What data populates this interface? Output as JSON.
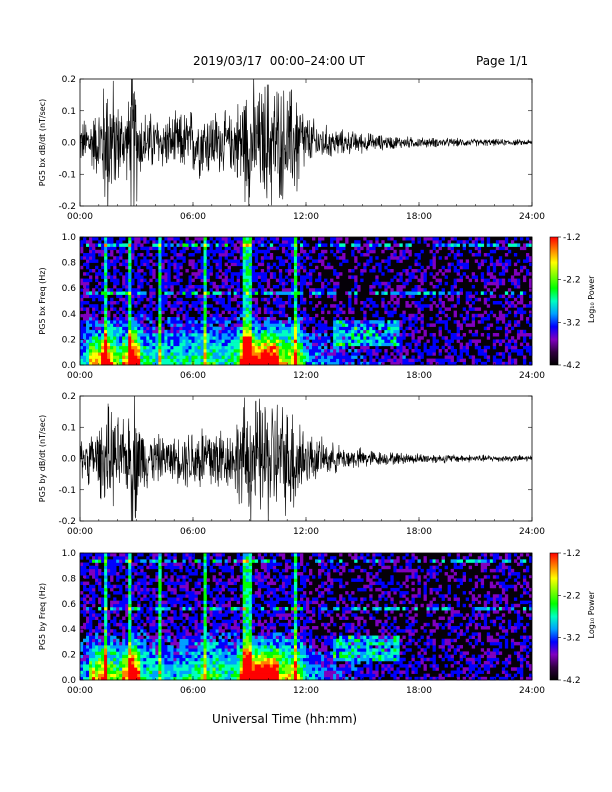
{
  "header": {
    "title": "2019/03/17  00:00–24:00 UT",
    "page": "Page 1/1"
  },
  "xlabel": "Universal Time (hh:mm)",
  "colorbar": {
    "label": "Log₁₀ Power",
    "ticks": [
      "-1.2",
      "-2.2",
      "-3.2",
      "-4.2"
    ],
    "colors": [
      "#ff0000",
      "#ff8000",
      "#ffff00",
      "#80ff00",
      "#00ff00",
      "#00ffc0",
      "#00a0ff",
      "#0000ff",
      "#8000c0",
      "#300040",
      "#000000"
    ]
  },
  "chart_data": [
    {
      "type": "line",
      "ylabel": "PG5 bx dB/dt (nT/sec)",
      "xlim": [
        0,
        24
      ],
      "ylim": [
        -0.2,
        0.2
      ],
      "xticks": [
        "00:00",
        "06:00",
        "12:00",
        "18:00",
        "24:00"
      ],
      "yticks": [
        "0.2",
        "0.1",
        "0.0",
        "-0.1",
        "-0.2"
      ],
      "envelope": {
        "x_hours": [
          0,
          1,
          1.5,
          2,
          2.5,
          2.8,
          3.2,
          4,
          5,
          6,
          7,
          8,
          9,
          9.5,
          10,
          11,
          11.5,
          12,
          13,
          14,
          15,
          16,
          18,
          20,
          22,
          24
        ],
        "amplitude": [
          0.06,
          0.1,
          0.25,
          0.12,
          0.1,
          0.25,
          0.1,
          0.08,
          0.08,
          0.1,
          0.1,
          0.08,
          0.2,
          0.15,
          0.2,
          0.15,
          0.18,
          0.08,
          0.05,
          0.035,
          0.03,
          0.022,
          0.015,
          0.012,
          0.01,
          0.008
        ]
      }
    },
    {
      "type": "heatmap",
      "ylabel": "PG5 bx Freq (Hz)",
      "xlim": [
        0,
        24
      ],
      "ylim": [
        0.0,
        1.0
      ],
      "xticks": [
        "00:00",
        "06:00",
        "12:00",
        "18:00",
        "24:00"
      ],
      "yticks": [
        "1.0",
        "0.8",
        "0.6",
        "0.4",
        "0.2",
        "0.0"
      ],
      "clim": [
        -4.2,
        -1.2
      ],
      "features": {
        "burst_hours": [
          1.3,
          2.7,
          4.3,
          6.7,
          8.8,
          9.1,
          11.5
        ],
        "lowfreq_hours": [
          1,
          2.7,
          9,
          10
        ],
        "noise_hz": [
          0.56,
          0.93
        ]
      }
    },
    {
      "type": "line",
      "ylabel": "PG5 by dB/dt (nT/sec)",
      "xlim": [
        0,
        24
      ],
      "ylim": [
        -0.2,
        0.2
      ],
      "xticks": [
        "00:00",
        "06:00",
        "12:00",
        "18:00",
        "24:00"
      ],
      "yticks": [
        "0.2",
        "0.1",
        "0.0",
        "-0.1",
        "-0.2"
      ],
      "envelope": {
        "x_hours": [
          0,
          1,
          1.5,
          2,
          2.5,
          2.8,
          3.2,
          4,
          5,
          6,
          7,
          8,
          9,
          9.5,
          10,
          11,
          11.5,
          12,
          13,
          14,
          15,
          16,
          18,
          20,
          22,
          24
        ],
        "amplitude": [
          0.05,
          0.1,
          0.15,
          0.12,
          0.1,
          0.25,
          0.1,
          0.07,
          0.06,
          0.1,
          0.12,
          0.08,
          0.2,
          0.17,
          0.2,
          0.15,
          0.18,
          0.08,
          0.05,
          0.035,
          0.03,
          0.02,
          0.015,
          0.012,
          0.01,
          0.01
        ]
      }
    },
    {
      "type": "heatmap",
      "ylabel": "PG5 by Freq (Hz)",
      "xlim": [
        0,
        24
      ],
      "ylim": [
        0.0,
        1.0
      ],
      "xticks": [
        "00:00",
        "06:00",
        "12:00",
        "18:00",
        "24:00"
      ],
      "yticks": [
        "1.0",
        "0.8",
        "0.6",
        "0.4",
        "0.2",
        "0.0"
      ],
      "clim": [
        -4.2,
        -1.2
      ],
      "features": {
        "burst_hours": [
          1.3,
          2.7,
          4.3,
          6.7,
          8.8,
          9.1,
          11.5
        ],
        "lowfreq_hours": [
          1,
          2.7,
          9,
          10
        ],
        "noise_hz": [
          0.56,
          0.93
        ]
      }
    }
  ]
}
